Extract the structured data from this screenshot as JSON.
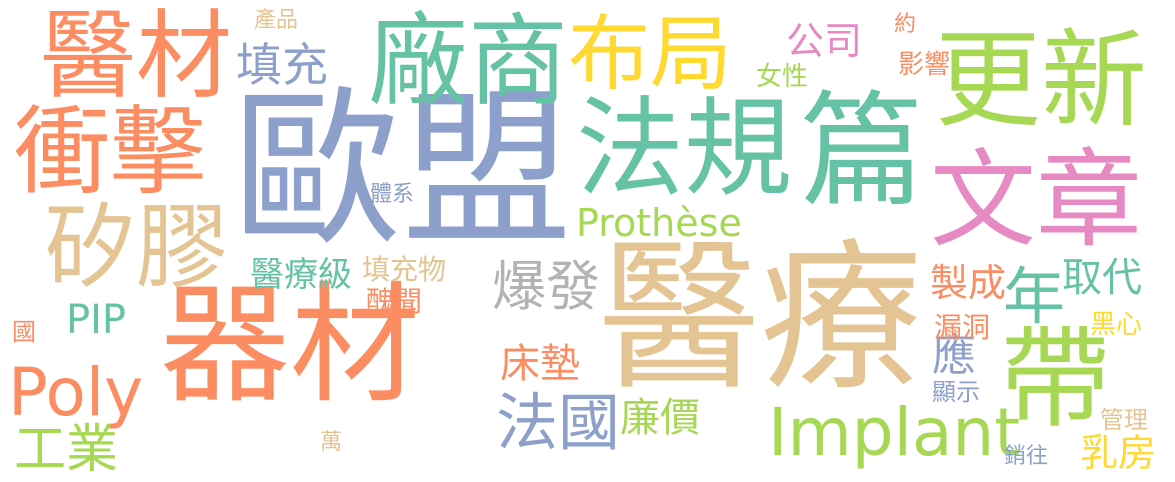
{
  "words": {
    "yimeng": {
      "text": "歐盟",
      "color": "#8da0cb"
    },
    "yiliao": {
      "text": "醫療",
      "color": "#e5c494"
    },
    "qicai": {
      "text": "器材",
      "color": "#fc8d62"
    },
    "fagui": {
      "text": "法規",
      "color": "#66c2a5"
    },
    "pian": {
      "text": "篇",
      "color": "#66c2a5"
    },
    "gengxin": {
      "text": "更新",
      "color": "#a6d854"
    },
    "wenzhang": {
      "text": "文章",
      "color": "#e78ac3"
    },
    "yicai": {
      "text": "醫材",
      "color": "#fc8d62"
    },
    "chongji": {
      "text": "衝擊",
      "color": "#fc8d62"
    },
    "changshang": {
      "text": "廠商",
      "color": "#66c2a5"
    },
    "buju": {
      "text": "布局",
      "color": "#ffd92f"
    },
    "guijiao": {
      "text": "矽膠",
      "color": "#e5c494"
    },
    "implant": {
      "text": "Implant",
      "color": "#a6d854"
    },
    "poly": {
      "text": "Poly",
      "color": "#fc8d62"
    },
    "prothese": {
      "text": "Prothèse",
      "color": "#a6d854"
    },
    "dai": {
      "text": "帶",
      "color": "#a6d854"
    },
    "nian": {
      "text": "年",
      "color": "#66c2a5"
    },
    "faguo": {
      "text": "法國",
      "color": "#8da0cb"
    },
    "baofa": {
      "text": "爆發",
      "color": "#b3b3b3"
    },
    "tianchong": {
      "text": "填充",
      "color": "#8da0cb"
    },
    "gongsi": {
      "text": "公司",
      "color": "#e78ac3"
    },
    "gongye": {
      "text": "工業",
      "color": "#a6d854"
    },
    "pip": {
      "text": "PIP",
      "color": "#66c2a5"
    },
    "chuangdian": {
      "text": "床墊",
      "color": "#fc8d62"
    },
    "lianjia": {
      "text": "廉價",
      "color": "#a6d854"
    },
    "yiliaoji": {
      "text": "醫療級",
      "color": "#66c2a5"
    },
    "qudai": {
      "text": "取代",
      "color": "#66c2a5"
    },
    "zhicheng": {
      "text": "製成",
      "color": "#fc8d62"
    },
    "ying": {
      "text": "應",
      "color": "#8da0cb"
    },
    "ruzang": {
      "text": "乳房",
      "color": "#ffd92f"
    },
    "chanpin": {
      "text": "產品",
      "color": "#e5c494"
    },
    "yue": {
      "text": "約",
      "color": "#fc8d62"
    },
    "nvxing": {
      "text": "女性",
      "color": "#a6d854"
    },
    "tixi": {
      "text": "體系",
      "color": "#8da0cb"
    },
    "tianchongwu": {
      "text": "填充物",
      "color": "#e5c494"
    },
    "chouwen": {
      "text": "醜聞",
      "color": "#fc8d62"
    },
    "louding": {
      "text": "漏洞",
      "color": "#fc8d62"
    },
    "heixin": {
      "text": "黑心",
      "color": "#ffd92f"
    },
    "xianshi": {
      "text": "顯示",
      "color": "#8da0cb"
    },
    "guanli": {
      "text": "管理",
      "color": "#e5c494"
    },
    "xiaowang": {
      "text": "銷往",
      "color": "#8da0cb"
    },
    "wan": {
      "text": "萬",
      "color": "#e5c494"
    },
    "guo": {
      "text": "國",
      "color": "#fc8d62"
    },
    "yingxiang": {
      "text": "影響",
      "color": "#fc8d62"
    }
  }
}
